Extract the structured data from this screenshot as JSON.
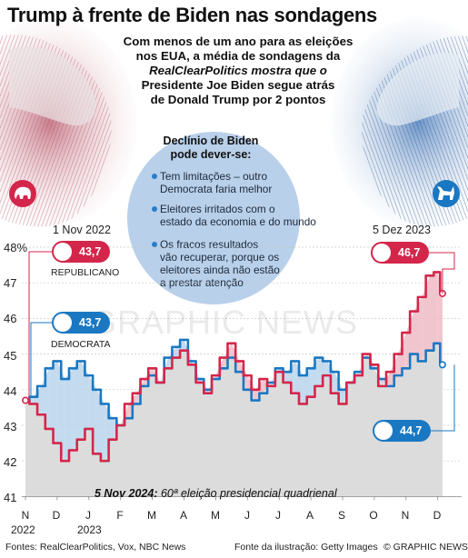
{
  "title": "Trump à frente de Biden nas sondagens",
  "subtitle": [
    "Com menos de um ano para as eleições",
    "nos EUA, a média de sondagens da",
    "RealClearPolitics mostra que o",
    "Presidente Joe Biden segue atrás",
    "de Donald Trump por 2 pontos"
  ],
  "callout": {
    "title": [
      "Declínio de Biden",
      "pode dever-se:"
    ],
    "bullets": [
      [
        "Tem limitações – outro",
        "Democrata faria melhor"
      ],
      [
        "Eleitores irritados com o",
        "estado da economia e do mundo"
      ],
      [
        "Os fracos resultados",
        "vão recuperar, porque os",
        "eleitores ainda não estão",
        "a prestar atenção"
      ]
    ]
  },
  "start": {
    "date": "1 Nov 2022",
    "republican": "43,7",
    "democrat": "43,7",
    "republican_label": "REPUBLICANO",
    "democrat_label": "DEMOCRATA"
  },
  "end": {
    "date": "5 Dez 2023",
    "republican": "46,7",
    "democrat": "44,7"
  },
  "footnote": {
    "bold": "5 Nov 2024:",
    "text": " 60ª eleição presidencial quadrienal"
  },
  "sources_left": "Fontes: RealClearPolitics, Vox, NBC News",
  "sources_mid": "Fonte da ilustração: Getty Images",
  "sources_right": "© GRAPHIC NEWS",
  "watermark": "GRAPHIC NEWS",
  "colors": {
    "republican": "#d4264b",
    "democrat": "#1a78c2",
    "rep_fill": "#eebbc4",
    "dem_fill": "#b9d3ec",
    "area": "#dcdcdc",
    "callout_bg": "#b9d0ea"
  },
  "icons": {
    "republican": "elephant-icon",
    "democrat": "donkey-icon"
  },
  "chart_data": {
    "type": "line",
    "title": "",
    "xlabel": "",
    "ylabel": "",
    "y_tick_labels": [
      "48%",
      "47",
      "46",
      "45",
      "44",
      "43",
      "42",
      "41"
    ],
    "ylim": [
      41,
      48
    ],
    "x_ticks": [
      "N",
      "D",
      "J",
      "F",
      "M",
      "A",
      "M",
      "J",
      "J",
      "A",
      "S",
      "O",
      "N",
      "D"
    ],
    "x_years": [
      "2022",
      "2023"
    ],
    "x": [
      0,
      0.25,
      0.5,
      0.75,
      1,
      1.25,
      1.5,
      1.75,
      2,
      2.25,
      2.5,
      2.75,
      3,
      3.25,
      3.5,
      3.75,
      4,
      4.25,
      4.5,
      4.75,
      5,
      5.25,
      5.5,
      5.75,
      6,
      6.25,
      6.5,
      6.75,
      7,
      7.25,
      7.5,
      7.75,
      8,
      8.25,
      8.5,
      8.75,
      9,
      9.25,
      9.5,
      9.75,
      10,
      10.25,
      10.5,
      10.75,
      11,
      11.25,
      11.5,
      11.75,
      12,
      12.25,
      12.5,
      12.75,
      13,
      13.15
    ],
    "x_unit": "months since 1 Nov 2022",
    "series": [
      {
        "name": "REPUBLICANO",
        "color": "#d4264b",
        "values": [
          43.7,
          43.6,
          43.3,
          42.9,
          42.5,
          42.0,
          42.3,
          42.6,
          42.9,
          42.2,
          42.0,
          42.6,
          43.0,
          43.6,
          43.9,
          44.3,
          44.6,
          44.2,
          44.6,
          44.9,
          45.1,
          44.7,
          44.2,
          43.9,
          44.4,
          44.9,
          45.3,
          44.8,
          44.4,
          44.0,
          44.3,
          44.1,
          44.5,
          44.2,
          43.9,
          43.6,
          43.8,
          44.1,
          44.4,
          43.9,
          43.6,
          44.2,
          44.4,
          45.0,
          44.7,
          44.1,
          44.5,
          45.0,
          45.6,
          46.2,
          46.6,
          47.2,
          47.3,
          46.7
        ]
      },
      {
        "name": "DEMOCRATA",
        "color": "#1a78c2",
        "values": [
          43.7,
          43.8,
          44.1,
          44.6,
          44.8,
          44.3,
          44.6,
          44.8,
          44.4,
          44.0,
          43.6,
          43.2,
          43.0,
          43.2,
          43.6,
          44.1,
          44.4,
          44.2,
          44.9,
          45.2,
          45.4,
          44.8,
          44.3,
          44.0,
          44.3,
          44.6,
          44.9,
          44.5,
          44.0,
          43.7,
          43.9,
          44.2,
          44.6,
          44.5,
          44.8,
          44.4,
          44.6,
          44.9,
          44.8,
          44.5,
          44.0,
          44.2,
          44.5,
          44.9,
          44.6,
          44.3,
          44.1,
          44.4,
          44.6,
          45.0,
          44.8,
          45.1,
          45.3,
          44.7
        ]
      }
    ]
  }
}
